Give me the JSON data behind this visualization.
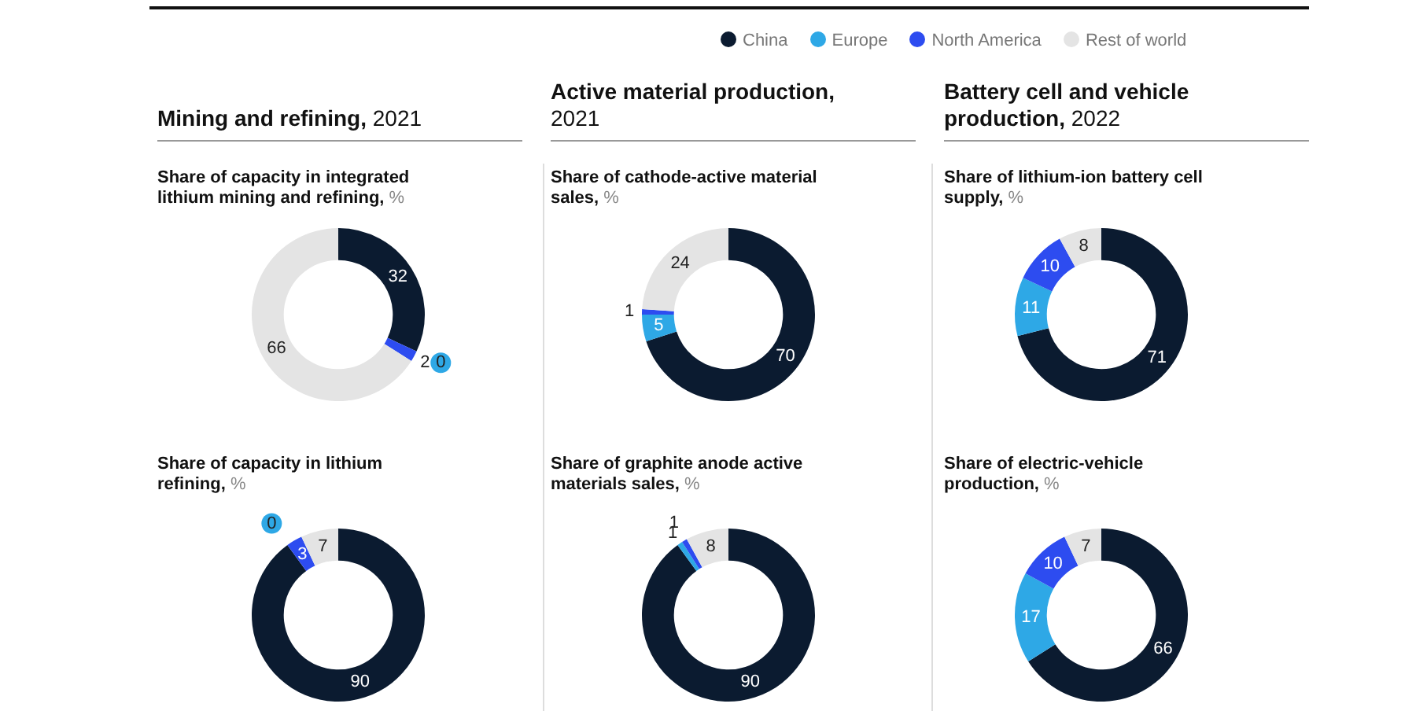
{
  "chart_data": [
    {
      "type": "donut",
      "title": "Mining and refining, 2021",
      "subtitle": "Share of capacity in integrated lithium mining and refining, %",
      "categories": [
        "China",
        "Europe",
        "North America",
        "Rest of world"
      ],
      "values": [
        32,
        0,
        2,
        66
      ],
      "colors": [
        "#0b1b30",
        "#2ea8e6",
        "#2d4cf0",
        "#e4e4e4"
      ],
      "value_labels": [
        "32",
        "0",
        "2",
        "66"
      ],
      "legend": "top right"
    },
    {
      "type": "donut",
      "title": "Active material production, 2021",
      "subtitle": "Share of cathode-active material sales, %",
      "categories": [
        null,
        null,
        null,
        null
      ],
      "values": [
        70,
        5,
        1,
        24
      ],
      "colors": [
        "#0b1b30",
        "#2ea8e6",
        "#2d4cf0",
        "#e4e4e4"
      ],
      "data_labels": true
    },
    {
      "type": "donut",
      "title": "Battery cell and vehicle production, 2022",
      "subtitle": "Share of lithium-ion battery cell supply, %",
      "categories": [
        null,
        null,
        null,
        null
      ],
      "values": [
        71,
        11,
        10,
        8
      ],
      "colors": [
        "#0b1b30",
        "#2ea8e6",
        "#2d4cf0",
        "#e4e4e4"
      ],
      "data_labels": true
    },
    {
      "type": "donut",
      "subtitle": "Share of capacity in lithium refining, %",
      "categories": [
        null,
        null,
        null,
        null
      ],
      "values": [
        90,
        0,
        3,
        7
      ],
      "colors": [
        "#0b1b30",
        "#2ea8e6",
        "#2d4cf0",
        "#e4e4e4"
      ],
      "value_labels": [
        "90",
        "0",
        "3",
        "7"
      ]
    },
    {
      "type": "donut",
      "subtitle": "Share of graphite anode active materials sales, %",
      "categories": [
        null,
        null,
        null,
        null
      ],
      "values": [
        90,
        1,
        1,
        8
      ],
      "colors": [
        "#0b1b30",
        "#2ea8e6",
        "#2d4cf0",
        "#e4e4e4"
      ],
      "data_labels": true
    },
    {
      "type": "donut",
      "subtitle": "Share of electric-vehicle production, %",
      "categories": [
        null,
        null,
        null,
        null
      ],
      "values": [
        66,
        17,
        10,
        7
      ],
      "colors": [
        "#0b1b30",
        "#2ea8e6",
        "#2d4cf0",
        "#e4e4e4"
      ],
      "data_labels": true
    }
  ]
}
